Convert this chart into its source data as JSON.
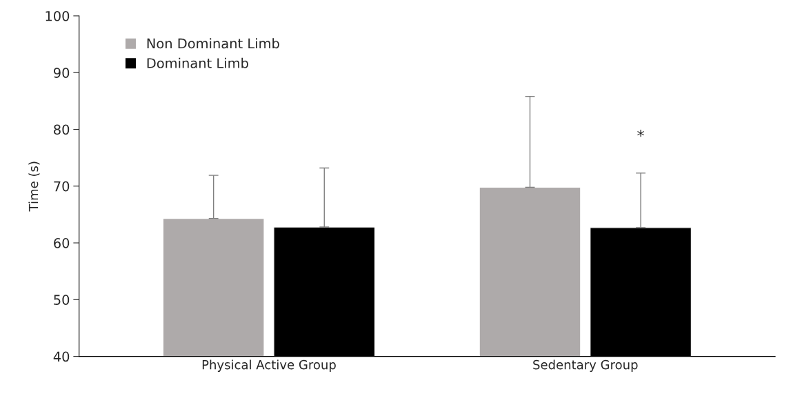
{
  "chart_data": {
    "type": "bar",
    "ylabel": "Time (s)",
    "categories": [
      "Physical Active Group",
      "Sedentary Group"
    ],
    "series": [
      {
        "name": "Non Dominant Limb",
        "color": "#aeaaaa",
        "values": [
          64.3,
          69.8
        ],
        "errors": [
          [
            64.3,
            71.9
          ],
          [
            69.8,
            85.8
          ]
        ]
      },
      {
        "name": "Dominant Limb",
        "color": "#000000",
        "values": [
          62.8,
          62.7
        ],
        "errors": [
          [
            62.8,
            73.2
          ],
          [
            62.7,
            72.3
          ]
        ]
      }
    ],
    "ylim": [
      40,
      100
    ],
    "yticks": [
      40,
      50,
      60,
      70,
      80,
      90,
      100
    ],
    "annotations": [
      "*"
    ],
    "legend": "top left",
    "grid": false
  }
}
